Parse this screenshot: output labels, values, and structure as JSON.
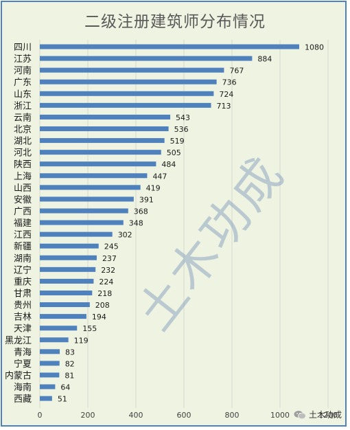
{
  "chart_data": {
    "type": "bar",
    "orientation": "horizontal",
    "title": "二级注册建筑师分布情况",
    "categories": [
      "四川",
      "江苏",
      "河南",
      "广东",
      "山东",
      "浙江",
      "云南",
      "北京",
      "湖北",
      "河北",
      "陕西",
      "上海",
      "山西",
      "安徽",
      "广西",
      "福建",
      "江西",
      "新疆",
      "湖南",
      "辽宁",
      "重庆",
      "甘肃",
      "贵州",
      "吉林",
      "天津",
      "黑龙江",
      "青海",
      "宁夏",
      "内蒙古",
      "海南",
      "西藏"
    ],
    "values": [
      1080,
      884,
      767,
      736,
      724,
      713,
      543,
      536,
      519,
      505,
      484,
      447,
      419,
      391,
      368,
      348,
      302,
      245,
      237,
      232,
      224,
      218,
      208,
      194,
      155,
      119,
      83,
      82,
      81,
      64,
      51
    ],
    "xticks": [
      "0",
      "200",
      "400",
      "600",
      "800",
      "1000",
      "1200"
    ],
    "xlim": [
      0,
      1200
    ],
    "grid": true,
    "bar_color": "#4f81bd"
  },
  "watermark": "土木功成",
  "brand": "土木功成",
  "icons": {
    "brand": "wechat-icon"
  }
}
